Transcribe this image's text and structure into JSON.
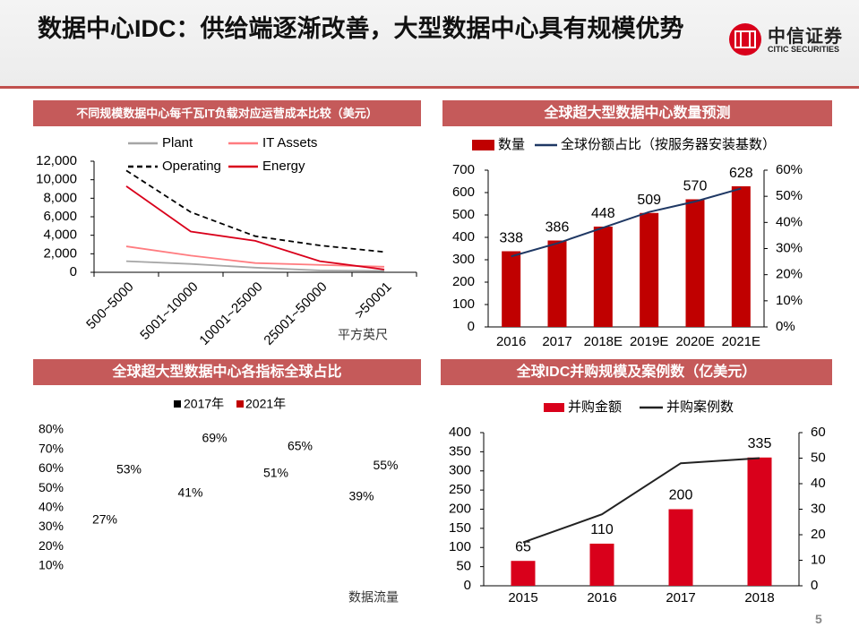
{
  "header": {
    "title": "数据中心IDC：供给端逐渐改善，大型数据中心具有规模优势",
    "logo_cn": "中信证券",
    "logo_en": "CITIC SECURITIES"
  },
  "page_number": "5",
  "colors": {
    "accent": "#c55a5a",
    "bar_red": "#c00000",
    "bar_red2": "#d9001b",
    "line_navy": "#1f3864"
  },
  "chart_data": [
    {
      "id": "cost",
      "type": "line",
      "title": "不同规模数据中心每千瓦IT负载对应运营成本比较（美元）",
      "categories": [
        "500~5000",
        "5001~10000",
        "10001~25000",
        "25001~50000",
        ">50001"
      ],
      "xlabel": "平方英尺",
      "ylim": [
        0,
        12000
      ],
      "yticks": [
        0,
        2000,
        4000,
        6000,
        8000,
        10000,
        12000
      ],
      "yticklabels": [
        "0",
        "2,000",
        "4,000",
        "6,000",
        "8,000",
        "10,000",
        "12,000"
      ],
      "legend": "top",
      "series": [
        {
          "name": "Plant",
          "color": "#a6a6a6",
          "dash": false,
          "values": [
            1200,
            900,
            500,
            200,
            150
          ]
        },
        {
          "name": "IT Assets",
          "color": "#ff7c80",
          "dash": false,
          "values": [
            2800,
            1800,
            1000,
            800,
            600
          ]
        },
        {
          "name": "Operating",
          "color": "#000000",
          "dash": true,
          "values": [
            11000,
            6500,
            3900,
            2900,
            2200
          ]
        },
        {
          "name": "Energy",
          "color": "#d9001b",
          "dash": false,
          "values": [
            9300,
            4400,
            3400,
            1200,
            300
          ]
        }
      ]
    },
    {
      "id": "hyperscale",
      "type": "bar+line",
      "title": "全球超大型数据中心数量预测",
      "categories": [
        "2016",
        "2017",
        "2018E",
        "2019E",
        "2020E",
        "2021E"
      ],
      "ylim": [
        0,
        700
      ],
      "yticks": [
        0,
        100,
        200,
        300,
        400,
        500,
        600,
        700
      ],
      "y2lim": [
        0,
        0.6
      ],
      "y2ticklabels": [
        "0%",
        "10%",
        "20%",
        "30%",
        "40%",
        "50%",
        "60%"
      ],
      "legend": "top",
      "series": [
        {
          "name": "数量",
          "type": "bar",
          "values": [
            338,
            386,
            448,
            509,
            570,
            628
          ],
          "labels": [
            "338",
            "386",
            "448",
            "509",
            "570",
            "628"
          ]
        },
        {
          "name": "全球份额占比（按服务器安装基数）",
          "type": "line",
          "axis": "right",
          "values": [
            0.27,
            0.32,
            0.38,
            0.44,
            0.48,
            0.53
          ]
        }
      ]
    },
    {
      "id": "share",
      "type": "bar",
      "title": "全球超大型数据中心各指标全球占比",
      "xlabel": "数据流量",
      "ylim": [
        0,
        0.8
      ],
      "yticklabels": [
        "10%",
        "20%",
        "30%",
        "40%",
        "50%",
        "60%",
        "70%",
        "80%"
      ],
      "legend": "top",
      "series": [
        {
          "name": "2017年",
          "color": "#000000",
          "values": [
            0.27,
            0.41,
            0.51,
            0.39
          ],
          "labels": [
            "27%",
            "41%",
            "51%",
            "39%"
          ]
        },
        {
          "name": "2021年",
          "color": "#c00000",
          "values": [
            0.53,
            0.69,
            0.65,
            0.55
          ],
          "labels": [
            "53%",
            "69%",
            "65%",
            "55%"
          ]
        }
      ]
    },
    {
      "id": "ma",
      "type": "bar+line",
      "title": "全球IDC并购规模及案例数（亿美元）",
      "categories": [
        "2015",
        "2016",
        "2017",
        "2018"
      ],
      "ylim": [
        0,
        400
      ],
      "yticks": [
        0,
        50,
        100,
        150,
        200,
        250,
        300,
        350,
        400
      ],
      "y2lim": [
        0,
        60
      ],
      "y2ticks": [
        0,
        10,
        20,
        30,
        40,
        50,
        60
      ],
      "legend": "top",
      "series": [
        {
          "name": "并购金额",
          "type": "bar",
          "values": [
            65,
            110,
            200,
            335
          ],
          "labels": [
            "65",
            "110",
            "200",
            "335"
          ]
        },
        {
          "name": "并购案例数",
          "type": "line",
          "axis": "right",
          "values": [
            17,
            28,
            48,
            50
          ]
        }
      ]
    }
  ]
}
